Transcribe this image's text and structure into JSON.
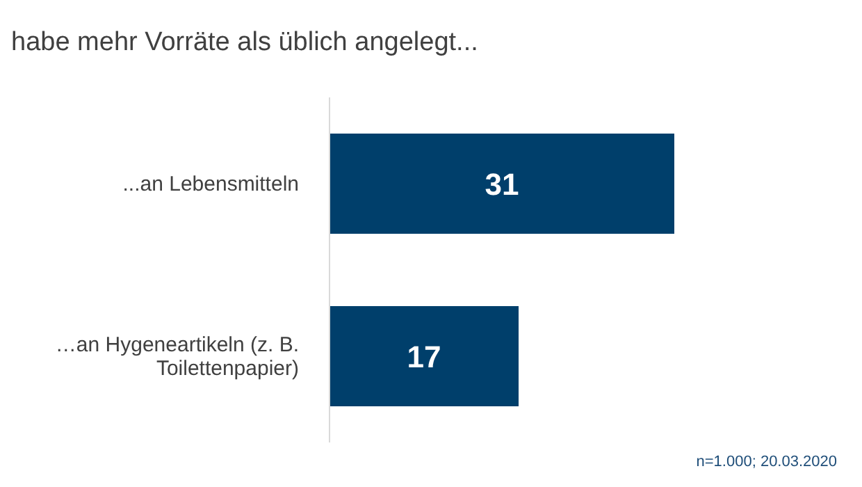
{
  "chart_data": {
    "type": "bar",
    "orientation": "horizontal",
    "title": "habe mehr Vorräte als üblich angelegt...",
    "categories": [
      "...an Lebensmitteln",
      "…an Hygeneartikeln (z. B. Toilettenpapier)"
    ],
    "values": [
      31,
      17
    ],
    "color": "#003f6b",
    "data_labels": true,
    "annotations": [
      "n=1.000; 20.03.2020"
    ]
  }
}
